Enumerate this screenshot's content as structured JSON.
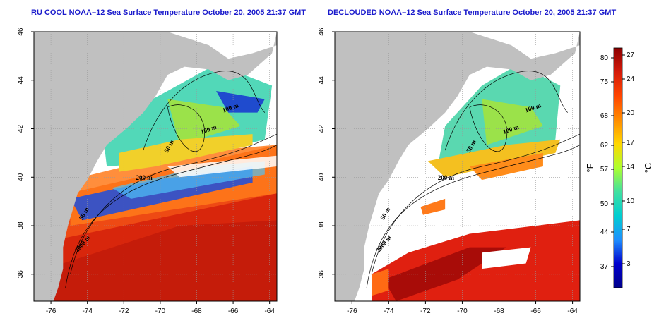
{
  "panels": [
    {
      "title": "RU COOL NOAA–12 Sea Surface Temperature October 20, 2005 21:37 GMT",
      "variant": "cloudy",
      "contour_labels": [
        "100 m",
        "100 m",
        "50 m",
        "200 m",
        "50 m",
        "2000 m"
      ]
    },
    {
      "title": "DECLOUDED NOAA–12 Sea Surface Temperature October 20, 2005 21:37 GMT",
      "variant": "declouded",
      "contour_labels": [
        "100 m",
        "100 m",
        "50 m",
        "200 m",
        "50 m",
        "2000 m"
      ]
    }
  ],
  "map": {
    "lon_ticks": [
      "-76",
      "-74",
      "-72",
      "-70",
      "-68",
      "-66",
      "-64"
    ],
    "lat_ticks": [
      "36",
      "38",
      "40",
      "42",
      "44",
      "46"
    ],
    "land_color": "#c0c0c0",
    "cloud_color": "#ffffff"
  },
  "colorbar": {
    "fahrenheit_label": "°F",
    "celsius_label": "°C",
    "fahrenheit_ticks": [
      "80",
      "75",
      "68",
      "62",
      "57",
      "50",
      "44",
      "37"
    ],
    "celsius_ticks": [
      "27",
      "24",
      "20",
      "17",
      "14",
      "10",
      "7",
      "3"
    ],
    "colors": [
      "#8b0000",
      "#d41a0a",
      "#ff4500",
      "#ff8c00",
      "#ffd700",
      "#adff2f",
      "#40e0a0",
      "#00ced1",
      "#1e90ff",
      "#0000cd",
      "#00008b"
    ]
  }
}
